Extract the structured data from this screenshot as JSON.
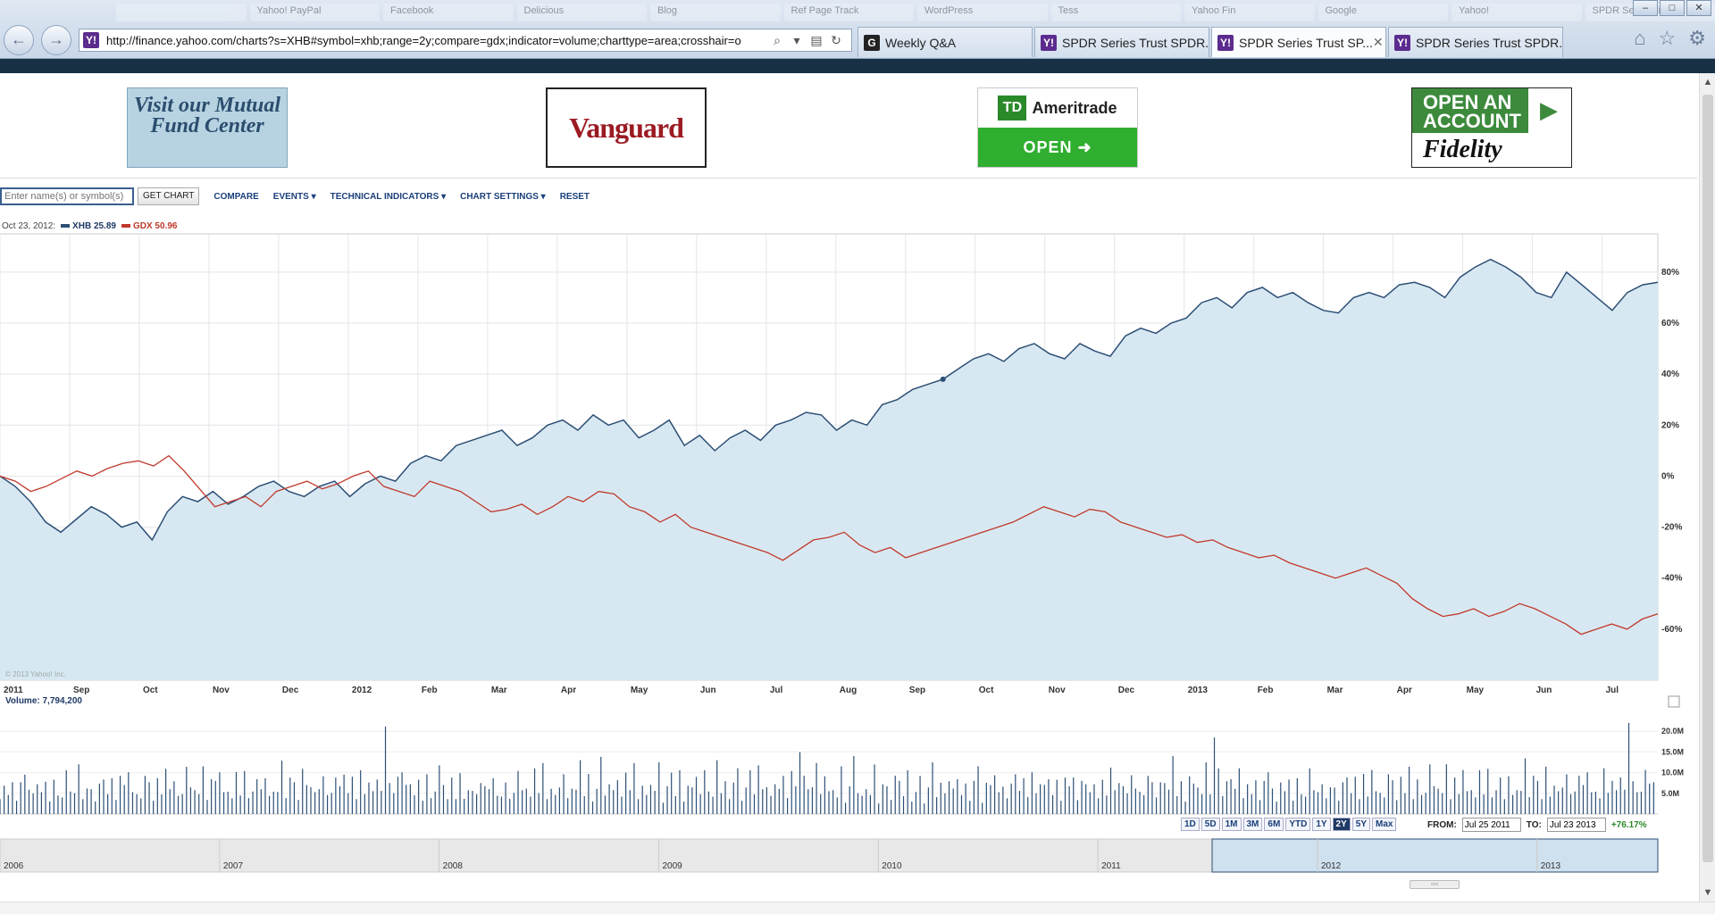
{
  "browser": {
    "url": "http://finance.yahoo.com/charts?s=XHB#symbol=xhb;range=2y;compare=gdx;indicator=volume;charttype=area;crosshair=o",
    "tabs": [
      {
        "label": "Weekly Q&A",
        "icon": "G",
        "active": false
      },
      {
        "label": "SPDR Series Trust SPDR...",
        "icon": "Y!",
        "active": false
      },
      {
        "label": "SPDR Series Trust SP...",
        "icon": "Y!",
        "active": true
      },
      {
        "label": "SPDR Series Trust SPDR...",
        "icon": "Y!",
        "active": false
      }
    ],
    "bookmarks": [
      "",
      "Yahoo! PayPal",
      "Facebook",
      "Delicious",
      "Blog",
      "Ref Page Track",
      "WordPress",
      "Tess",
      "Yahoo Fin",
      "Google",
      "Yahoo!",
      "SPDR Series Tru"
    ]
  },
  "ads": {
    "mutual": "Visit our Mutual Fund Center",
    "vanguard": "Vanguard",
    "td_name": "Ameritrade",
    "td_logo": "TD",
    "td_open": "OPEN",
    "fid_top": "OPEN AN ACCOUNT",
    "fid_name": "Fidelity"
  },
  "toolbar": {
    "placeholder": "Enter name(s) or symbol(s)",
    "get_chart": "GET CHART",
    "compare": "COMPARE",
    "events": "EVENTS",
    "technical": "TECHNICAL INDICATORS",
    "settings": "CHART SETTINGS",
    "reset": "RESET"
  },
  "legend": {
    "date": "Oct 23, 2012:",
    "s1": "XHB 25.89",
    "s2": "GDX 50.96",
    "volume": "Volume: 7,794,200"
  },
  "copyright": "© 2013 Yahoo! Inc.",
  "ranges": [
    "1D",
    "5D",
    "1M",
    "3M",
    "6M",
    "YTD",
    "1Y",
    "2Y",
    "5Y",
    "Max"
  ],
  "active_range": "2Y",
  "from_label": "FROM:",
  "from_value": "Jul 25 2011",
  "to_label": "TO:",
  "to_value": "Jul 23 2013",
  "change": "+76.17%",
  "colors": {
    "xhb": "#2c4f75",
    "gdx": "#c0392b",
    "area": "#d8e8f2"
  },
  "chart_data": {
    "type": "line",
    "x_labels": [
      "2011",
      "Sep",
      "Oct",
      "Nov",
      "Dec",
      "2012",
      "Feb",
      "Mar",
      "Apr",
      "May",
      "Jun",
      "Jul",
      "Aug",
      "Sep",
      "Oct",
      "Nov",
      "Dec",
      "2013",
      "Feb",
      "Mar",
      "Apr",
      "May",
      "Jun",
      "Jul"
    ],
    "y_ticks": [
      "80%",
      "60%",
      "40%",
      "20%",
      "0%",
      "-20%",
      "-40%",
      "-60%"
    ],
    "ylim": [
      -80,
      95
    ],
    "series": [
      {
        "name": "XHB",
        "type": "area",
        "values": [
          0,
          -4,
          -10,
          -18,
          -22,
          -17,
          -12,
          -15,
          -20,
          -18,
          -25,
          -14,
          -8,
          -10,
          -6,
          -11,
          -8,
          -4,
          -2,
          -6,
          -8,
          -4,
          -2,
          -8,
          -3,
          0,
          -2,
          5,
          8,
          6,
          12,
          14,
          16,
          18,
          12,
          15,
          20,
          22,
          18,
          24,
          20,
          22,
          15,
          18,
          22,
          12,
          16,
          10,
          15,
          18,
          14,
          20,
          22,
          25,
          24,
          18,
          22,
          20,
          28,
          30,
          34,
          36,
          38,
          42,
          46,
          48,
          45,
          50,
          52,
          48,
          46,
          52,
          49,
          47,
          55,
          58,
          56,
          60,
          62,
          68,
          70,
          66,
          72,
          74,
          70,
          72,
          68,
          65,
          64,
          70,
          72,
          70,
          75,
          76,
          74,
          70,
          78,
          82,
          85,
          82,
          78,
          72,
          70,
          80,
          75,
          70,
          65,
          72,
          75,
          76
        ]
      },
      {
        "name": "GDX",
        "type": "line",
        "values": [
          0,
          -2,
          -6,
          -4,
          -1,
          2,
          0,
          3,
          5,
          6,
          4,
          8,
          2,
          -5,
          -12,
          -10,
          -8,
          -12,
          -6,
          -4,
          -2,
          -5,
          -3,
          0,
          2,
          -4,
          -6,
          -8,
          -2,
          -4,
          -6,
          -10,
          -14,
          -13,
          -11,
          -15,
          -12,
          -8,
          -10,
          -6,
          -7,
          -12,
          -14,
          -18,
          -15,
          -20,
          -22,
          -24,
          -26,
          -28,
          -30,
          -33,
          -29,
          -25,
          -24,
          -22,
          -27,
          -30,
          -28,
          -32,
          -30,
          -28,
          -26,
          -24,
          -22,
          -20,
          -18,
          -15,
          -12,
          -14,
          -16,
          -13,
          -14,
          -18,
          -20,
          -22,
          -24,
          -23,
          -26,
          -25,
          -28,
          -30,
          -32,
          -31,
          -34,
          -36,
          -38,
          -40,
          -38,
          -36,
          -39,
          -42,
          -48,
          -52,
          -55,
          -54,
          -52,
          -55,
          -53,
          -50,
          -52,
          -55,
          -58,
          -62,
          -60,
          -58,
          -60,
          -56,
          -54
        ]
      }
    ],
    "volume": {
      "y_ticks": [
        "20.0M",
        "15.0M",
        "10.0M",
        "5.0M"
      ],
      "ylim": [
        0,
        25
      ],
      "values": [
        6,
        9,
        5,
        12,
        4,
        8,
        14,
        7,
        5,
        10,
        6,
        13,
        4,
        9,
        7,
        5,
        11,
        8,
        6,
        12,
        5,
        7,
        10,
        4,
        8,
        13,
        6,
        9,
        5,
        11,
        7,
        14,
        6,
        8,
        5,
        10,
        12,
        4,
        9,
        7,
        13,
        6,
        11,
        5,
        8,
        15,
        7,
        9,
        6,
        12,
        5,
        10,
        8,
        14,
        6,
        9,
        5,
        11,
        7,
        13,
        4,
        8,
        10,
        6,
        12,
        5,
        9,
        7,
        14,
        6,
        11,
        8,
        5,
        13,
        7,
        9,
        6,
        10,
        12,
        5,
        8,
        11,
        7,
        14,
        6,
        9,
        5,
        12,
        8,
        10,
        6,
        13,
        7,
        22,
        11,
        6,
        9,
        14,
        8,
        12
      ]
    },
    "navigator_labels": [
      "2006",
      "2007",
      "2008",
      "2009",
      "2010",
      "2011",
      "2012",
      "2013"
    ]
  }
}
